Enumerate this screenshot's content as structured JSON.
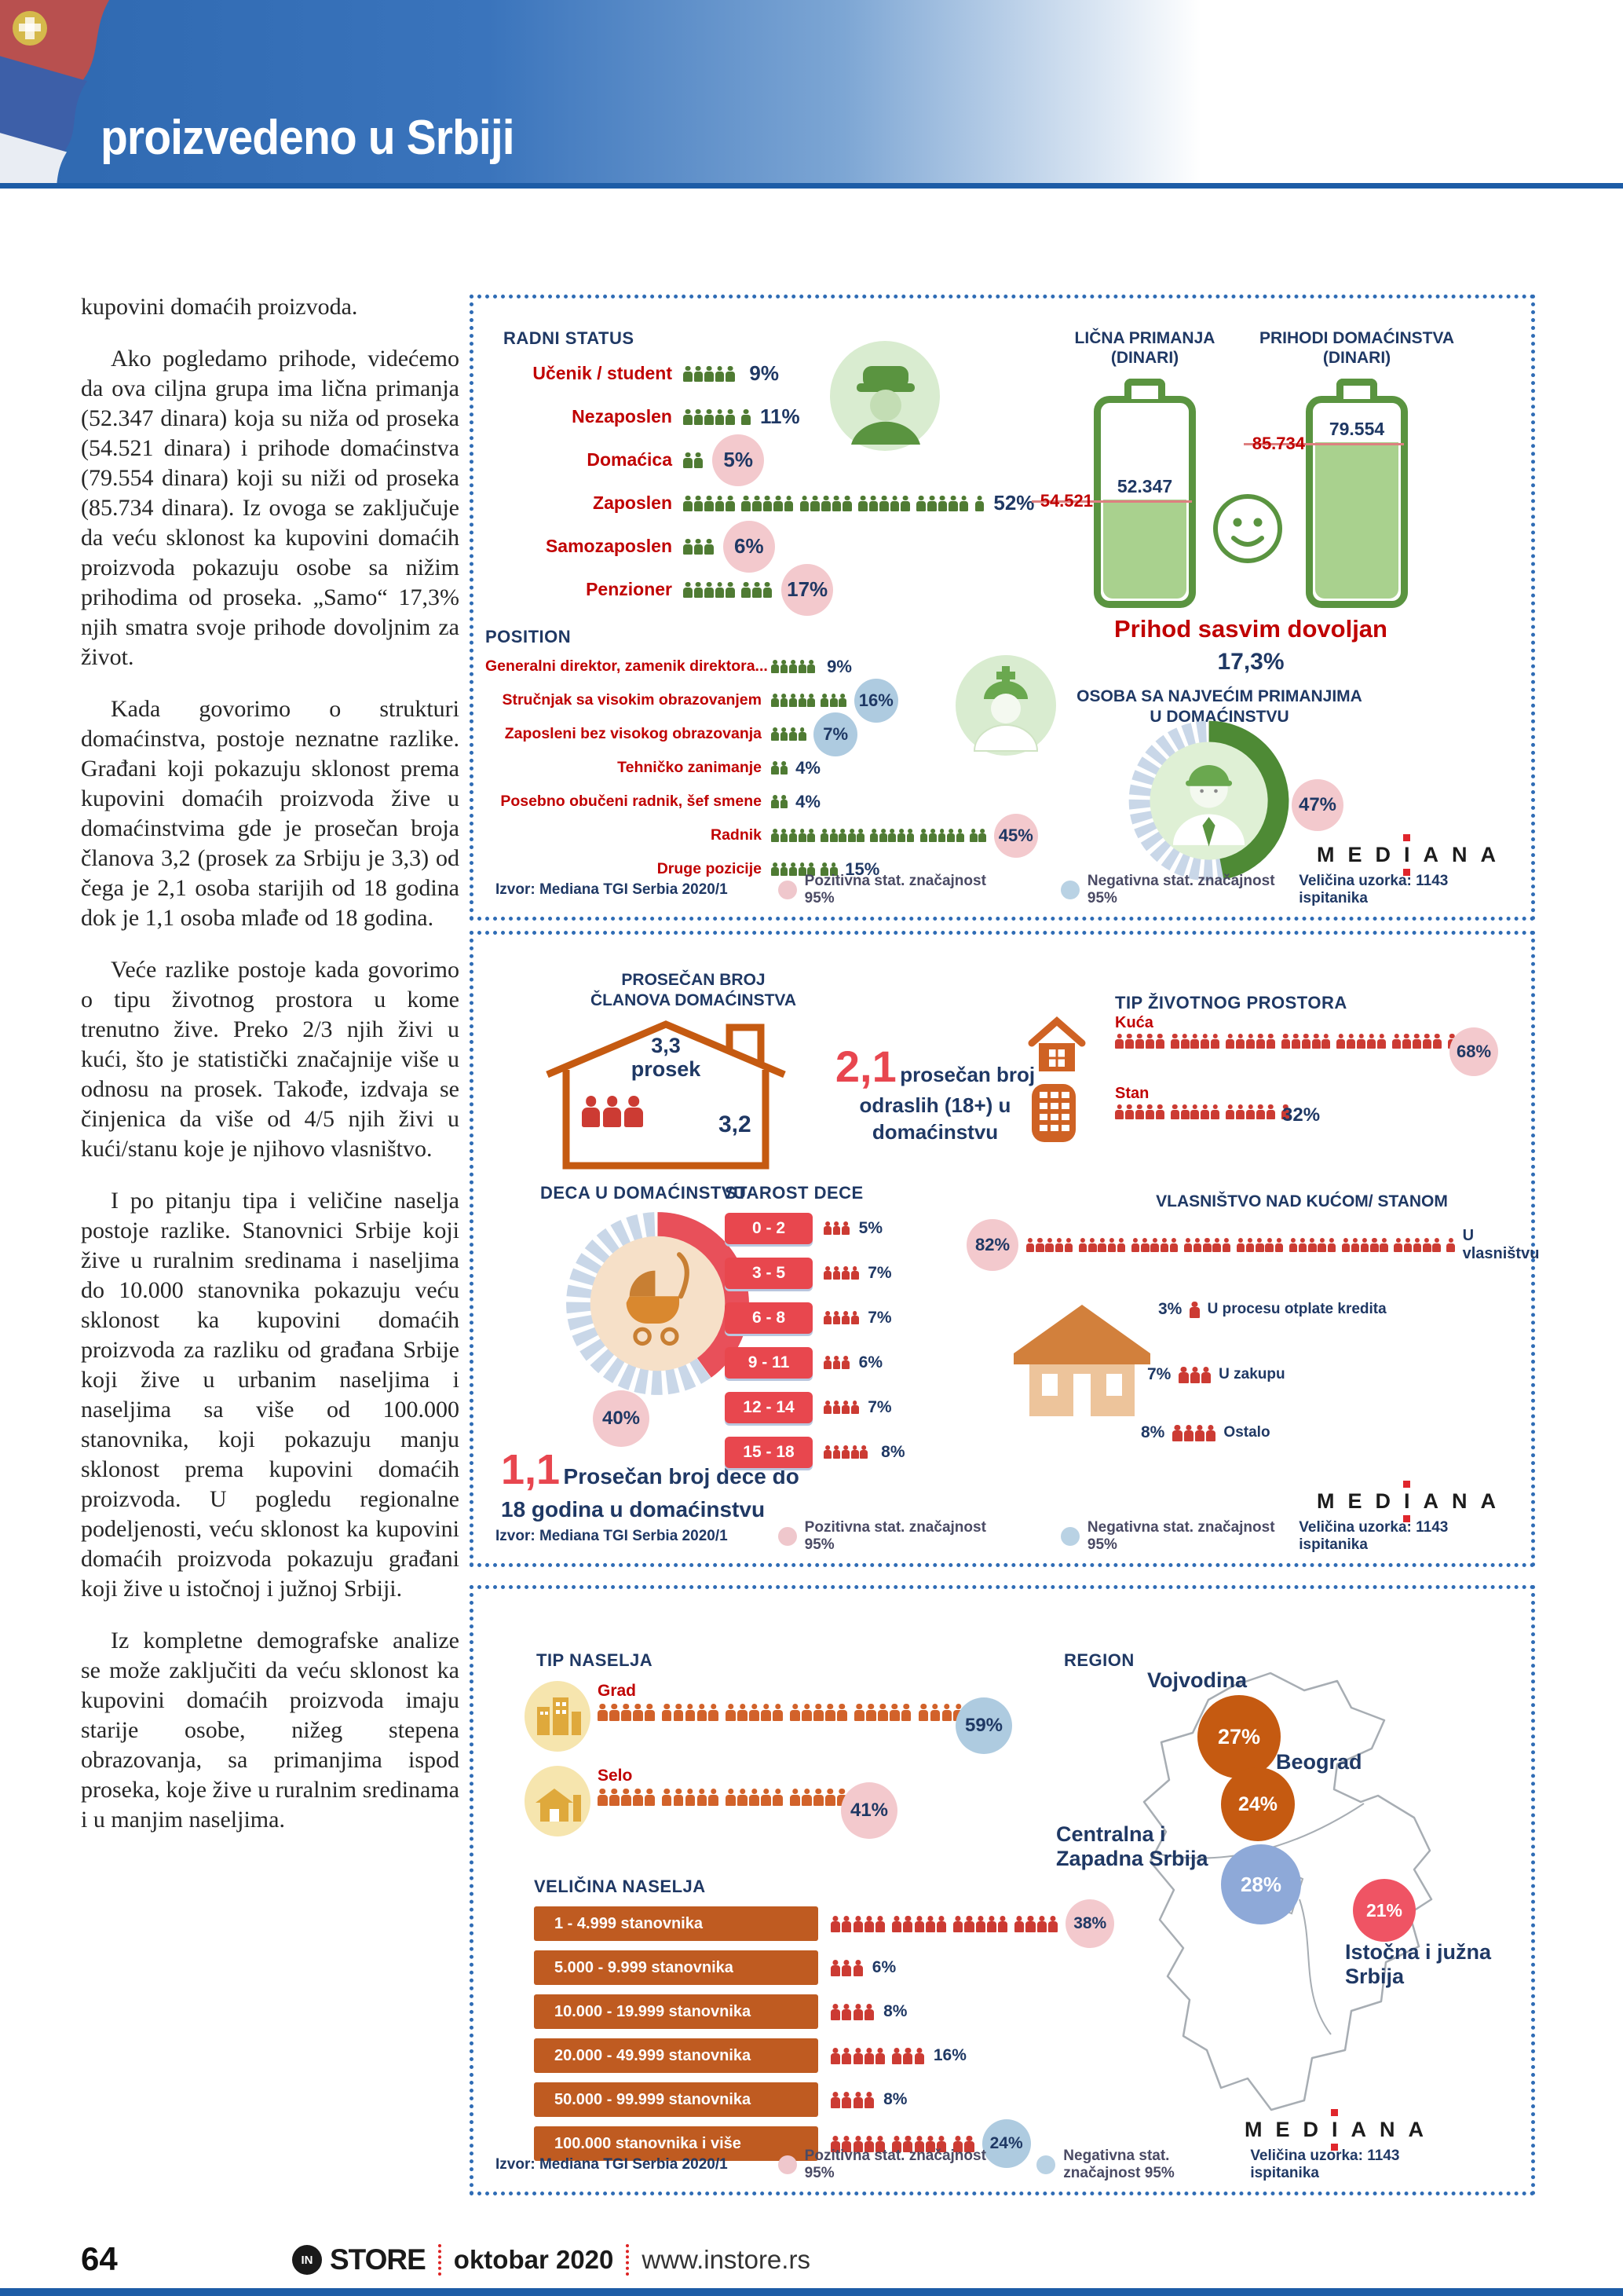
{
  "colors": {
    "navy": "#1f3864",
    "red_label": "#c00000",
    "green_icon": "#4f7b33",
    "battery_green": "#5a9440",
    "battery_fill": "#a9d18e",
    "pink_highlight": "#f3c9cd",
    "blue_highlight": "#aecbe0",
    "orange": "#c55a11",
    "picto_red": "#cc3b33",
    "bar_orange": "#bf5b21",
    "agebox_red": "#e8474e",
    "map_blue": "#8ea9d8",
    "map_red": "#ef5464",
    "banner_blue": "#2e68b0",
    "mediana_dot": "#e0262c"
  },
  "header": {
    "title": "proizvedeno u Srbiji"
  },
  "article": {
    "paragraphs": [
      "kupovini domaćih proizvoda.",
      "Ako pogledamo prihode, videćemo da ova ciljna grupa ima lična primanja (52.347 dinara) koja su niža od proseka (54.521 dinara) i prihode domaćinstva (79.554 dinara) koji su niži od proseka (85.734 dinara). Iz ovoga se zaključuje da veću sklonost ka kupovini domaćih proizvoda pokazuju osobe sa nižim prihodima od proseka. „Samo“ 17,3% njih smatra svoje prihode dovoljnim za život.",
      "Kada govorimo o strukturi domaćinstva, postoje neznatne razlike. Građani koji pokazuju sklonost prema kupovini domaćih proizvoda žive u domaćinstvima gde je prosečan broja članova 3,2 (prosek za Srbiju je 3,3) od čega je 2,1 osoba starijih od 18 godina dok je 1,1 osoba mlađe od 18 godina.",
      "Veće razlike postoje kada govorimo o tipu životnog prostora u kome trenutno žive. Preko 2/3 njih živi u kući, što je statistički značajnije više u odnosu na prosek. Takođe, izdvaja se činjenica da više od 4/5 njih živi u kući/stanu koje je njihovo vlasništvo.",
      "I po pitanju tipa i veličine naselja postoje razlike. Stanovnici Srbije koji žive u ruralnim sredinama i naseljima do 10.000 stanovnika pokazuju veću sklonost ka kupovini domaćih proizvoda za razliku od građana Srbije koji žive u urbanim naseljima i naseljima sa više od 100.000 stanovnika, koji pokazuju manju sklonost prema kupovini domaćih proizvoda. U pogledu regionalne podeljenosti, veću sklonost ka kupovini domaćih proizvoda pokazuju građani koji žive u istočnoj i južnoj Srbiji.",
      "Iz kompletne demografske analize se može zaključiti da veću sklonost ka kupovini domaćih proizvoda imaju starije osobe, nižeg stepena obrazovanja, sa primanjima ispod proseka, koje žive u ruralnim sredinama i u manjim naseljima."
    ]
  },
  "common": {
    "izvor": "Izvor: Mediana TGI Serbia 2020/1",
    "legend_pos": "Pozitivna stat. značajnost  95%",
    "legend_neg": "Negativna stat. značajnost  95%",
    "mediana": "MEDIANA",
    "sample": "Veličina uzorka: 1143 ispitanika"
  },
  "panel1": {
    "radni_status": {
      "title": "RADNI STATUS",
      "rows": [
        {
          "label": "Učenik / student",
          "value": "9%",
          "icons": 5
        },
        {
          "label": "Nezaposlen",
          "value": "11%",
          "icons": 6
        },
        {
          "label": "Domaćica",
          "value": "5%",
          "icons": 2
        },
        {
          "label": "Zaposlen",
          "value": "52%",
          "icons": 26
        },
        {
          "label": "Samozaposlen",
          "value": "6%",
          "icons": 3
        },
        {
          "label": "Penzioner",
          "value": "17%",
          "icons": 8
        }
      ]
    },
    "position": {
      "title": "POSITION",
      "rows": [
        {
          "label": "Generalni direktor, zamenik direktora...",
          "value": "9%",
          "icons": 5
        },
        {
          "label": "Stručnjak sa visokim obrazovanjem",
          "value": "16%",
          "icons": 8
        },
        {
          "label": "Zaposleni bez visokog obrazovanja",
          "value": "7%",
          "icons": 4
        },
        {
          "label": "Tehničko zanimanje",
          "value": "4%",
          "icons": 2
        },
        {
          "label": "Posebno obučeni radnik, šef smene",
          "value": "4%",
          "icons": 2
        },
        {
          "label": "Radnik",
          "value": "45%",
          "icons": 22
        },
        {
          "label": "Druge pozicije",
          "value": "15%",
          "icons": 7
        }
      ]
    },
    "licna": {
      "title": "LIČNA PRIMANJA",
      "subtitle": "(DINARI)",
      "average": "54.521",
      "value": "52.347",
      "fill_pct": 50
    },
    "prihodi": {
      "title": "PRIHODI DOMAĆINSTVA",
      "subtitle": "(DINARI)",
      "average": "85.734",
      "value": "79.554",
      "fill_pct": 79
    },
    "prihod_dovoljan": {
      "label": "Prihod sasvim dovoljan",
      "value": "17,3%"
    },
    "osoba": {
      "title_line1": "OSOBA SA NAJVEĆIM PRIMANJIMA",
      "title_line2": "U DOMAĆINSTVU",
      "value": "47%",
      "pct": 47
    }
  },
  "panel2": {
    "clanovi": {
      "title_line1": "PROSEČAN BROJ",
      "title_line2": "ČLANOVA DOMAĆINSTVA",
      "prosek_value": "3,3",
      "prosek_label": "prosek",
      "value": "3,2"
    },
    "odrasli": {
      "big": "2,1",
      "text_line1": "prosečan broj",
      "text_line2": "odraslih (18+) u",
      "text_line3": "domaćinstvu"
    },
    "tip_prostora": {
      "title": "TIP ŽIVOTNOG PROSTORA",
      "rows": [
        {
          "label": "Kuća",
          "value": "68%",
          "icons": 34
        },
        {
          "label": "Stan",
          "value": "32%",
          "icons": 16
        }
      ]
    },
    "deca": {
      "title": "DECA U DOMAĆINSTVU",
      "value": "40%",
      "pct": 40
    },
    "deca_prosek": {
      "big": "1,1",
      "text_line1": "Prosečan broj dece do",
      "text_line2": "18 godina u domaćinstvu"
    },
    "starost": {
      "title": "STAROST DECE",
      "rows": [
        {
          "range": "0 - 2",
          "value": "5%",
          "icons": 3
        },
        {
          "range": "3 - 5",
          "value": "7%",
          "icons": 4
        },
        {
          "range": "6 - 8",
          "value": "7%",
          "icons": 4
        },
        {
          "range": "9 - 11",
          "value": "6%",
          "icons": 3
        },
        {
          "range": "12 - 14",
          "value": "7%",
          "icons": 4
        },
        {
          "range": "15 - 18",
          "value": "8%",
          "icons": 5
        }
      ]
    },
    "vlasnistvo": {
      "title": "VLASNIŠTVO NAD KUĆOM/ STANOM",
      "main": {
        "value": "82%",
        "icons": 41,
        "label": "U vlasništvu"
      },
      "rows": [
        {
          "value": "3%",
          "icons": 1,
          "label": "U procesu otplate kredita"
        },
        {
          "value": "7%",
          "icons": 3,
          "label": "U zakupu"
        },
        {
          "value": "8%",
          "icons": 4,
          "label": "Ostalo"
        }
      ]
    }
  },
  "panel3": {
    "tip_naselja": {
      "title": "TIP NASELJA",
      "rows": [
        {
          "label": "Grad",
          "value": "59%",
          "icons": 30
        },
        {
          "label": "Selo",
          "value": "41%",
          "icons": 20
        }
      ]
    },
    "velicina": {
      "title": "VELIČINA NASELJA",
      "rows": [
        {
          "label": "1 - 4.999  stanovnika",
          "value": "38%",
          "icons": 19
        },
        {
          "label": "5.000 - 9.999 stanovnika",
          "value": "6%",
          "icons": 3
        },
        {
          "label": "10.000 - 19.999 stanovnika",
          "value": "8%",
          "icons": 4
        },
        {
          "label": "20.000 - 49.999 stanovnika",
          "value": "16%",
          "icons": 8
        },
        {
          "label": "50.000 - 99.999 stanovnika",
          "value": "8%",
          "icons": 4
        },
        {
          "label": "100.000 stanovnika i više",
          "value": "24%",
          "icons": 12
        }
      ]
    },
    "region": {
      "title": "REGION",
      "areas": [
        {
          "name": "Vojvodina",
          "value": "27%"
        },
        {
          "name": "Beograd",
          "value": "24%"
        },
        {
          "name": "Centralna i",
          "name2": "Zapadna Srbija",
          "value": "28%"
        },
        {
          "name": "Istočna i južna",
          "name2": "Srbija",
          "value": "21%"
        }
      ]
    }
  },
  "footer": {
    "page": "64",
    "brand_mark": "IN",
    "brand": "STORE",
    "date": "oktobar 2020",
    "url": "www.instore.rs"
  }
}
